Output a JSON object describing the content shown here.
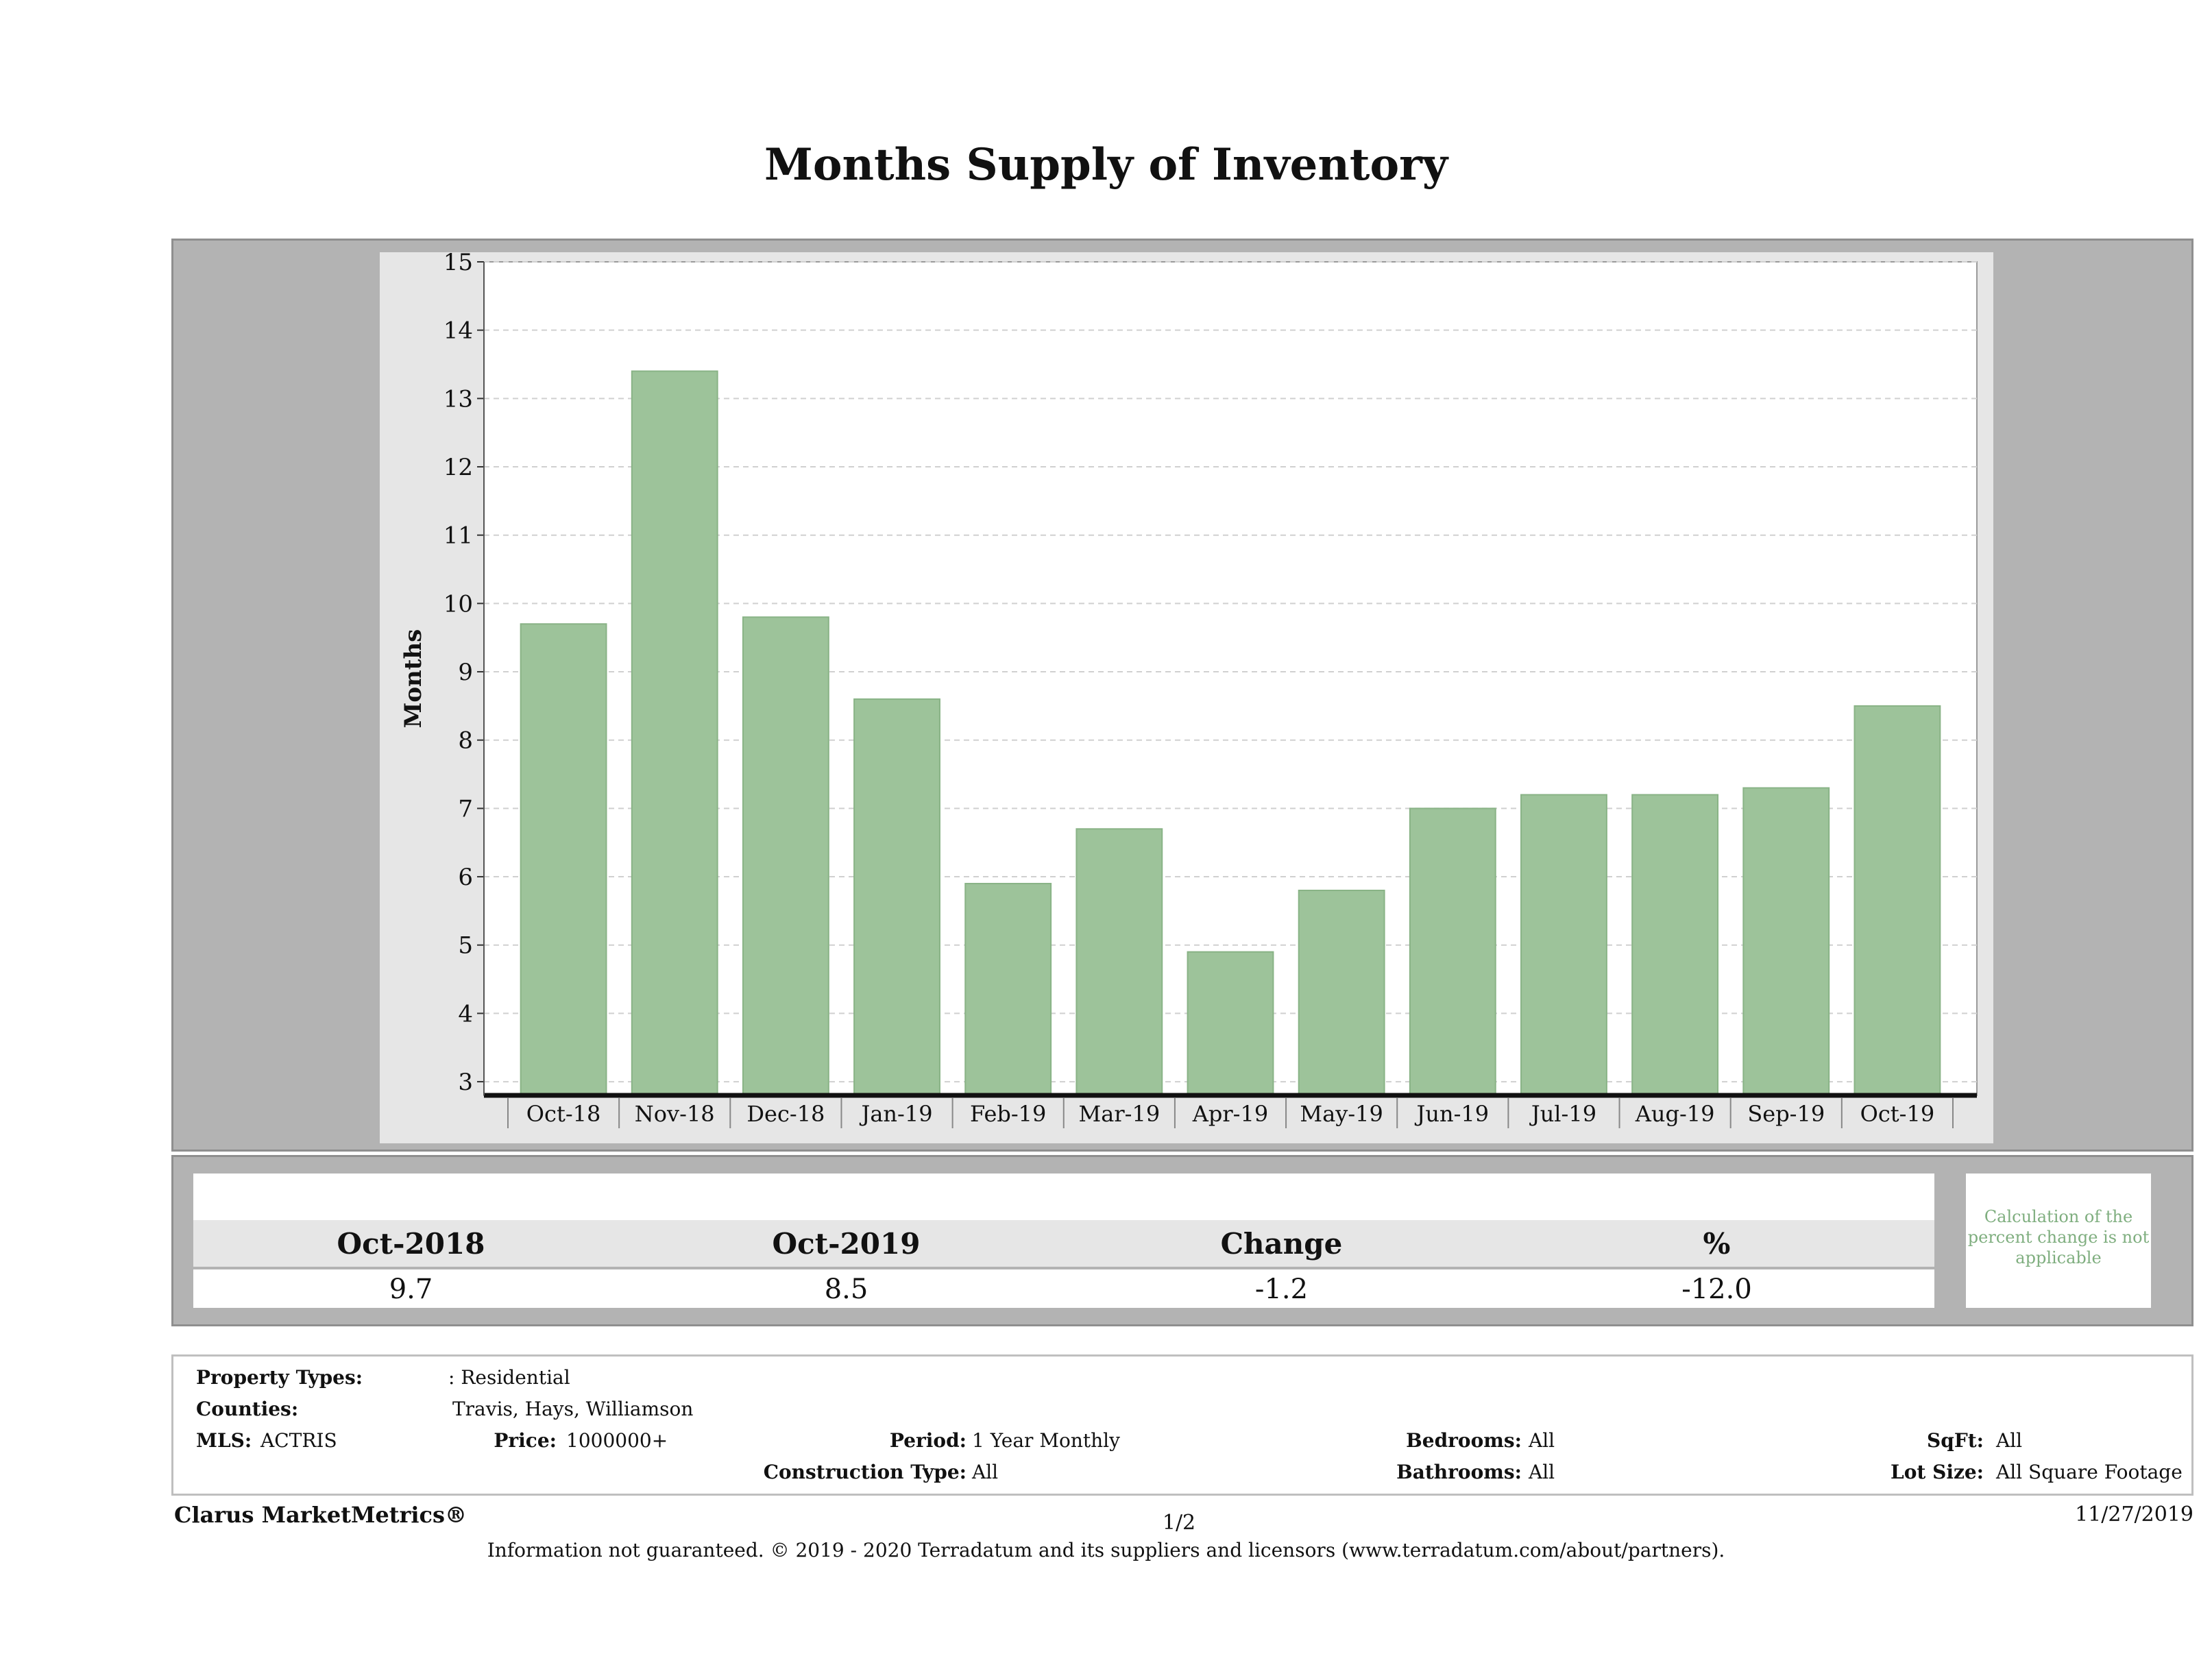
{
  "report": {
    "title": "Months Supply of Inventory"
  },
  "chart_data": {
    "type": "bar",
    "title": "Months Supply of Inventory",
    "xlabel": "",
    "ylabel": "Months",
    "categories": [
      "Oct-18",
      "Nov-18",
      "Dec-18",
      "Jan-19",
      "Feb-19",
      "Mar-19",
      "Apr-19",
      "May-19",
      "Jun-19",
      "Jul-19",
      "Aug-19",
      "Sep-19",
      "Oct-19"
    ],
    "values": [
      9.7,
      13.4,
      9.8,
      8.6,
      5.9,
      6.7,
      4.9,
      5.8,
      7.0,
      7.2,
      7.2,
      7.3,
      8.5
    ],
    "ylim": [
      2.8,
      15
    ],
    "yticks": [
      3,
      4,
      5,
      6,
      7,
      8,
      9,
      10,
      11,
      12,
      13,
      14,
      15
    ],
    "grid": true,
    "legend": "none",
    "colors": {
      "bar": "#9dc39a",
      "bar_edge": "#89b386",
      "plot_bg": "#ffffff",
      "panel_bg": "#e6e6e6",
      "grid": "#d0d0d0"
    }
  },
  "summary": {
    "headers": [
      "Oct-2018",
      "Oct-2019",
      "Change",
      "%"
    ],
    "values": [
      "9.7",
      "8.5",
      "-1.2",
      "-12.0"
    ],
    "note": "Calculation of the percent change is not applicable"
  },
  "filters": {
    "property_types_label": "Property Types:",
    "property_types_value": ": Residential",
    "counties_label": "Counties:",
    "counties_value": "Travis, Hays, Williamson",
    "mls_label": "MLS:",
    "mls_value": "ACTRIS",
    "price_label": "Price:",
    "price_value": "1000000+",
    "period_label": "Period:",
    "period_value": "1 Year Monthly",
    "construction_label": "Construction Type:",
    "construction_value": "All",
    "bedrooms_label": "Bedrooms:",
    "bedrooms_value": "All",
    "bathrooms_label": "Bathrooms:",
    "bathrooms_value": "All",
    "sqft_label": "SqFt:",
    "sqft_value": "All",
    "lot_label": "Lot Size:",
    "lot_value": "All Square Footage"
  },
  "footer": {
    "brand": "Clarus MarketMetrics®",
    "page": "1/2",
    "date": "11/27/2019",
    "disclaimer": "Information not guaranteed. © 2019 - 2020 Terradatum and its suppliers and licensors (www.terradatum.com/about/partners)."
  }
}
